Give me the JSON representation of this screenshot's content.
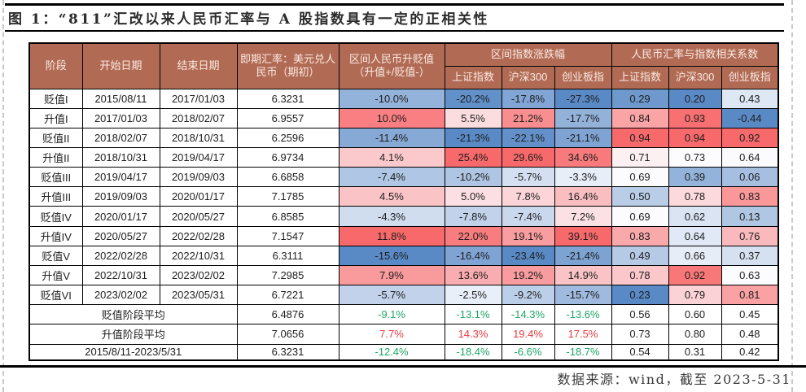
{
  "title": "图 1：“811”汇改以来人民币汇率与 A 股指数具有一定的正相关性",
  "source_note": "数据来源：wind，截至 2023-5-31",
  "colors": {
    "header_bg": "#B16B55",
    "header_text": "#FBEAE2",
    "table_border": "#000000",
    "rule": "#000000",
    "dash": "#C9C9C9",
    "title_text": "#2B2B2B",
    "source_text": "#3A3A3A",
    "positive_text": "#E93A3E",
    "negative_text": "#1FA567",
    "scale_red": "#F8696B",
    "scale_blue": "#5A8AC6"
  },
  "table": {
    "header": {
      "stage": "阶段",
      "start_date": "开始日期",
      "end_date": "结束日期",
      "spot_rate": "即期汇率：美元兑人民币（期初）",
      "rmb_change": "区间人民币升贬值（升值+/贬值-）",
      "index_change_group": "区间指数涨跌幅",
      "corr_group": "人民币汇率与指数相关系数",
      "sub_columns": [
        "上证指数",
        "沪深300",
        "创业板指",
        "上证指数",
        "沪深300",
        "创业板指"
      ]
    },
    "rows": [
      {
        "stage": "贬值I",
        "start": "2015/08/11",
        "end": "2017/01/03",
        "spot": "6.3231",
        "cells": [
          {
            "v": "-10.0%",
            "bg": "#94B3DA"
          },
          {
            "v": "-20.2%",
            "bg": "#6290C9"
          },
          {
            "v": "-17.8%",
            "bg": "#81A5D4"
          },
          {
            "v": "-27.3%",
            "bg": "#5A8AC6"
          },
          {
            "v": "0.29",
            "bg": "#6F99CD"
          },
          {
            "v": "0.20",
            "bg": "#5A8AC6"
          },
          {
            "v": "0.43",
            "bg": "#DEE7F4"
          }
        ]
      },
      {
        "stage": "升值I",
        "start": "2017/01/03",
        "end": "2018/02/07",
        "spot": "6.9557",
        "cells": [
          {
            "v": "10.0%",
            "bg": "#F97F82"
          },
          {
            "v": "5.5%",
            "bg": "#FBDCDF"
          },
          {
            "v": "21.2%",
            "bg": "#F98E91"
          },
          {
            "v": "-17.7%",
            "bg": "#93B2DA"
          },
          {
            "v": "0.84",
            "bg": "#FAA4A6"
          },
          {
            "v": "0.93",
            "bg": "#F87072"
          },
          {
            "v": "-0.44",
            "bg": "#5A8AC6"
          }
        ]
      },
      {
        "stage": "贬值II",
        "start": "2018/02/07",
        "end": "2018/10/31",
        "spot": "6.2596",
        "cells": [
          {
            "v": "-11.4%",
            "bg": "#86A9D5"
          },
          {
            "v": "-21.3%",
            "bg": "#5A8AC6"
          },
          {
            "v": "-22.1%",
            "bg": "#6390C9"
          },
          {
            "v": "-21.1%",
            "bg": "#7FA4D3"
          },
          {
            "v": "0.94",
            "bg": "#F8696B"
          },
          {
            "v": "0.94",
            "bg": "#F8696B"
          },
          {
            "v": "0.92",
            "bg": "#F8696B"
          }
        ]
      },
      {
        "stage": "升值II",
        "start": "2018/10/31",
        "end": "2019/04/17",
        "spot": "6.9734",
        "cells": [
          {
            "v": "4.1%",
            "bg": "#FBC9CC"
          },
          {
            "v": "25.4%",
            "bg": "#F8696B"
          },
          {
            "v": "29.6%",
            "bg": "#F8696B"
          },
          {
            "v": "34.6%",
            "bg": "#F87A7C"
          },
          {
            "v": "0.71",
            "bg": "#FCF0F3"
          },
          {
            "v": "0.73",
            "bg": "#FCFCFF"
          },
          {
            "v": "0.64",
            "bg": "#FBFAFD"
          }
        ]
      },
      {
        "stage": "贬值III",
        "start": "2019/04/17",
        "end": "2019/09/03",
        "spot": "6.6858",
        "cells": [
          {
            "v": "-7.4%",
            "bg": "#AFC6E4"
          },
          {
            "v": "-10.2%",
            "bg": "#AEC5E4"
          },
          {
            "v": "-5.7%",
            "bg": "#D4E0F1"
          },
          {
            "v": "-3.3%",
            "bg": "#E8EEF8"
          },
          {
            "v": "0.69",
            "bg": "#FCFCFF"
          },
          {
            "v": "0.39",
            "bg": "#94B3DA"
          },
          {
            "v": "0.06",
            "bg": "#A6BFE1"
          }
        ]
      },
      {
        "stage": "升值III",
        "start": "2019/09/03",
        "end": "2020/01/17",
        "spot": "7.1785",
        "cells": [
          {
            "v": "4.5%",
            "bg": "#FAC4C7"
          },
          {
            "v": "5.0%",
            "bg": "#FBDFE2"
          },
          {
            "v": "7.8%",
            "bg": "#FBD5D8"
          },
          {
            "v": "16.4%",
            "bg": "#FABEC1"
          },
          {
            "v": "0.50",
            "bg": "#B9CDE7"
          },
          {
            "v": "0.78",
            "bg": "#FBD9DC"
          },
          {
            "v": "0.83",
            "bg": "#F99799"
          }
        ]
      },
      {
        "stage": "贬值IV",
        "start": "2020/01/17",
        "end": "2020/05/27",
        "spot": "6.8585",
        "cells": [
          {
            "v": "-4.3%",
            "bg": "#CFDDEF"
          },
          {
            "v": "-7.8%",
            "bg": "#C1D2EA"
          },
          {
            "v": "-7.4%",
            "bg": "#C9D8ED"
          },
          {
            "v": "7.2%",
            "bg": "#FBE1E4"
          },
          {
            "v": "0.69",
            "bg": "#FCFCFF"
          },
          {
            "v": "0.62",
            "bg": "#DAE4F3"
          },
          {
            "v": "0.13",
            "bg": "#B0C7E4"
          }
        ]
      },
      {
        "stage": "升值IV",
        "start": "2020/05/27",
        "end": "2022/02/28",
        "spot": "7.1547",
        "cells": [
          {
            "v": "11.8%",
            "bg": "#F8696B"
          },
          {
            "v": "22.0%",
            "bg": "#F97D7F"
          },
          {
            "v": "19.1%",
            "bg": "#F99DA0"
          },
          {
            "v": "39.1%",
            "bg": "#F8696B"
          },
          {
            "v": "0.83",
            "bg": "#FAA9AB"
          },
          {
            "v": "0.64",
            "bg": "#E0E9F5"
          },
          {
            "v": "0.76",
            "bg": "#FABABD"
          }
        ]
      },
      {
        "stage": "贬值V",
        "start": "2022/02/28",
        "end": "2022/10/31",
        "spot": "6.3111",
        "cells": [
          {
            "v": "-15.6%",
            "bg": "#5A8AC6"
          },
          {
            "v": "-16.4%",
            "bg": "#7FA4D3"
          },
          {
            "v": "-23.4%",
            "bg": "#5A8AC6"
          },
          {
            "v": "-21.4%",
            "bg": "#7DA3D2"
          },
          {
            "v": "0.49",
            "bg": "#B6CAE6"
          },
          {
            "v": "0.66",
            "bg": "#E7EDF7"
          },
          {
            "v": "0.37",
            "bg": "#D5E0F1"
          }
        ]
      },
      {
        "stage": "升值V",
        "start": "2022/10/31",
        "end": "2023/02/02",
        "spot": "7.2985",
        "cells": [
          {
            "v": "7.9%",
            "bg": "#F99A9C"
          },
          {
            "v": "13.6%",
            "bg": "#FAADB0"
          },
          {
            "v": "19.2%",
            "bg": "#F99C9F"
          },
          {
            "v": "14.9%",
            "bg": "#FAC4C7"
          },
          {
            "v": "0.78",
            "bg": "#FBC7CA"
          },
          {
            "v": "0.92",
            "bg": "#F87779"
          },
          {
            "v": "0.63",
            "bg": "#FCFCFF"
          }
        ]
      },
      {
        "stage": "贬值VI",
        "start": "2023/02/02",
        "end": "2023/05/31",
        "spot": "6.7221",
        "cells": [
          {
            "v": "-5.7%",
            "bg": "#C1D2EA"
          },
          {
            "v": "-2.5%",
            "bg": "#E9EFF8"
          },
          {
            "v": "-9.2%",
            "bg": "#BCCFE9"
          },
          {
            "v": "-15.7%",
            "bg": "#9FBADE"
          },
          {
            "v": "0.23",
            "bg": "#5A8AC6"
          },
          {
            "v": "0.79",
            "bg": "#FBD2D5"
          },
          {
            "v": "0.81",
            "bg": "#FAA1A3"
          }
        ]
      }
    ],
    "summary_rows": [
      {
        "label": "贬值阶段平均",
        "spot": "6.4876",
        "cells": [
          {
            "v": "-9.1%",
            "fg": "#1FA567"
          },
          {
            "v": "-13.1%",
            "fg": "#1FA567"
          },
          {
            "v": "-14.3%",
            "fg": "#1FA567"
          },
          {
            "v": "-13.6%",
            "fg": "#1FA567"
          },
          {
            "v": "0.56"
          },
          {
            "v": "0.60"
          },
          {
            "v": "0.45"
          }
        ]
      },
      {
        "label": "升值阶段平均",
        "spot": "7.0656",
        "cells": [
          {
            "v": "7.7%",
            "fg": "#E93A3E"
          },
          {
            "v": "14.3%",
            "fg": "#E93A3E"
          },
          {
            "v": "19.4%",
            "fg": "#E93A3E"
          },
          {
            "v": "17.5%",
            "fg": "#E93A3E"
          },
          {
            "v": "0.73"
          },
          {
            "v": "0.80"
          },
          {
            "v": "0.48"
          }
        ]
      },
      {
        "label": "2015/8/11-2023/5/31",
        "spot": "6.3231",
        "cells": [
          {
            "v": "-12.4%",
            "fg": "#1FA567"
          },
          {
            "v": "-18.4%",
            "fg": "#1FA567"
          },
          {
            "v": "-6.6%",
            "fg": "#1FA567"
          },
          {
            "v": "-18.7%",
            "fg": "#1FA567"
          },
          {
            "v": "0.54"
          },
          {
            "v": "0.31"
          },
          {
            "v": "0.42"
          }
        ]
      }
    ]
  }
}
